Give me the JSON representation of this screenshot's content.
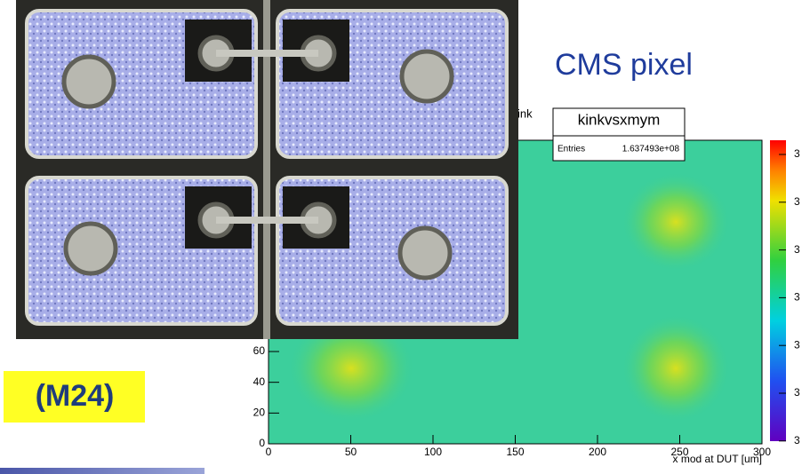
{
  "slide": {
    "title": "CMS pixel",
    "label": "(M24)"
  },
  "histogram": {
    "title_fragment": "ink",
    "stats_title": "kinkvsxmym",
    "entries_label": "Entries",
    "entries_value": "1.637493e+08",
    "x_label": "x mod at DUT [um]",
    "xticks": [
      0,
      50,
      100,
      150,
      200,
      250,
      300
    ],
    "yticks": [
      0,
      20,
      40,
      60
    ],
    "z_labels": [
      "3",
      "3",
      "3",
      "3",
      "3",
      "3",
      "3"
    ]
  }
}
